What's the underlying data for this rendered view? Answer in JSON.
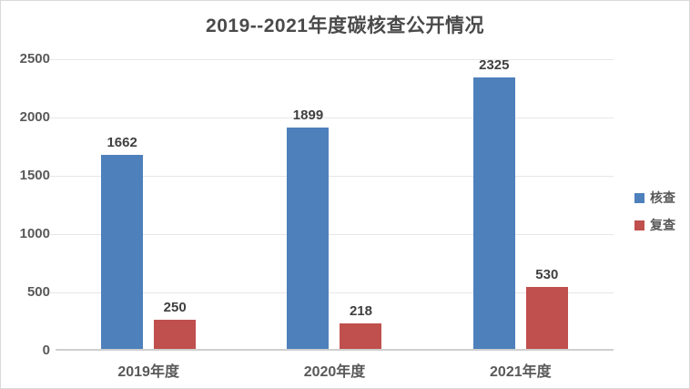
{
  "chart_data": {
    "type": "bar",
    "title": "2019--2021年度碳核查公开情况",
    "categories": [
      "2019年度",
      "2020年度",
      "2021年度"
    ],
    "series": [
      {
        "id": "verification",
        "name": "核查",
        "color": "#4e80bc",
        "values": [
          1662,
          1899,
          2325
        ]
      },
      {
        "id": "recheck",
        "name": "复查",
        "color": "#c0504d",
        "values": [
          250,
          218,
          530
        ]
      }
    ],
    "xlabel": "",
    "ylabel": "",
    "ylim": [
      0,
      2500
    ],
    "yticks": [
      0,
      500,
      1000,
      1500,
      2000,
      2500
    ],
    "grid": true,
    "value_labels": true,
    "legend_position": "right"
  },
  "colors": {
    "background": "#ffffff",
    "frame_border": "#d9d9d9",
    "title_text": "#4a4a4a",
    "axis_text": "#595959",
    "value_label_text": "#404040",
    "gridline": "#e7e7e7",
    "axis_line": "#cfcfcf",
    "series_blue": "#4e80bc",
    "series_red": "#c0504d"
  }
}
